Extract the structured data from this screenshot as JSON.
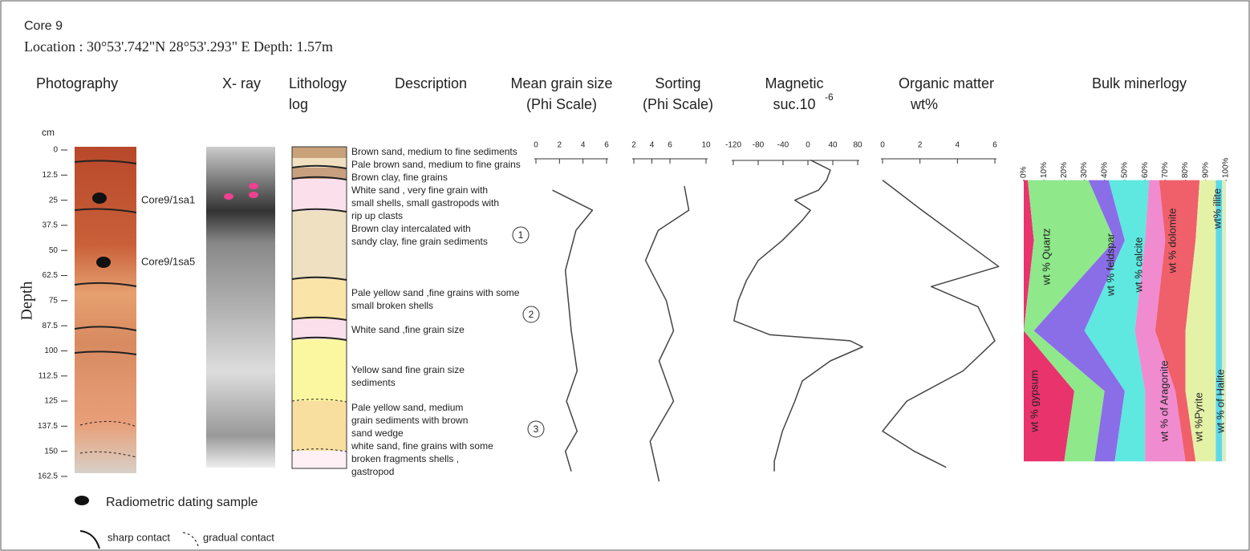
{
  "header": {
    "core": "Core 9",
    "location": "Location :  30°53'.742\"N  28°53'.293\" E Depth: 1.57m"
  },
  "columns": {
    "photography": "Photography",
    "xray": "X- ray",
    "lithology": [
      "Lithology",
      "log"
    ],
    "description": "Description"
  },
  "depth_axis": {
    "label": "Depth",
    "unit": "cm",
    "lim": [
      0,
      162.5
    ],
    "ticks": [
      0,
      12.5,
      25,
      37.5,
      50,
      62.5,
      75,
      87.5,
      100,
      112.5,
      125,
      137.5,
      150,
      162.5
    ]
  },
  "samples": [
    "Core9/1sa1",
    "Core9/1sa5"
  ],
  "descriptions": [
    [
      "Brown sand, medium to fine sediments"
    ],
    [
      "Pale brown sand, medium to fine grains"
    ],
    [
      "Brown clay, fine grains"
    ],
    [
      "White sand , very fine grain with",
      "small shells, small gastropods with",
      "rip up clasts"
    ],
    [
      "Brown clay intercalated with",
      "sandy clay, fine grain sediments"
    ],
    [
      "Pale yellow sand ,fine grains with some",
      "small broken shells"
    ],
    [
      "White sand ,fine grain size"
    ],
    [
      "Yellow sand fine grain size",
      "sediments"
    ],
    [
      "Pale yellow sand, medium",
      "grain sediments with brown",
      "sand wedge"
    ],
    [
      "white sand, fine grains with some",
      "broken fragments shells ,",
      "gastropod"
    ]
  ],
  "units": [
    "1",
    "2",
    "3"
  ],
  "logs": [
    {
      "title": [
        "Mean grain size",
        "(Phi Scale)"
      ],
      "lim": [
        0,
        6
      ],
      "ticks": [
        0,
        2,
        4,
        6
      ],
      "depths": [
        20,
        30,
        40,
        60,
        90,
        110,
        125,
        140,
        150,
        160
      ],
      "values": [
        1.4,
        4.8,
        3.4,
        2.5,
        3,
        3.5,
        2.6,
        3.5,
        2.5,
        3
      ]
    },
    {
      "title": [
        "Sorting",
        "(Phi Scale)"
      ],
      "lim": [
        2,
        10
      ],
      "ticks": [
        2,
        4,
        6,
        10
      ],
      "depths": [
        18,
        30,
        40,
        55,
        75,
        90,
        105,
        125,
        145,
        165
      ],
      "values": [
        7.6,
        8.1,
        4.7,
        3.3,
        5.6,
        6.4,
        4.8,
        6.4,
        3.8,
        4.8
      ]
    },
    {
      "title": [
        "Magnetic",
        "suc.10"
      ],
      "superscript": "-6",
      "lim": [
        -120,
        80
      ],
      "ticks": [
        -120,
        -80,
        -40,
        0,
        40,
        80
      ],
      "depths": [
        5,
        10,
        15,
        20,
        25,
        30,
        35,
        45,
        55,
        65,
        75,
        85,
        92,
        95,
        98,
        105,
        115,
        125,
        140,
        155,
        160
      ],
      "values": [
        4,
        36,
        30,
        17,
        -21,
        4,
        -9,
        -41,
        -80,
        -99,
        -112,
        -119,
        -61,
        68,
        88,
        36,
        -9,
        -21,
        -41,
        -54,
        -54
      ]
    },
    {
      "title": [
        "Organic matter",
        "wt%"
      ],
      "lim": [
        0,
        6
      ],
      "ticks": [
        0,
        2,
        4,
        6
      ],
      "depths": [
        15,
        30,
        45,
        58,
        68,
        78,
        95,
        110,
        125,
        140,
        150,
        158
      ],
      "values": [
        0,
        2.1,
        4.3,
        6.2,
        2.6,
        5.1,
        6,
        4.3,
        1.3,
        0,
        1.7,
        3.4
      ]
    }
  ],
  "mineralogy": {
    "title": "Bulk minerlogy",
    "lim": [
      0,
      100
    ],
    "ticks": [
      {
        "value": 0,
        "label": "0%"
      },
      {
        "value": 10,
        "label": "10%"
      },
      {
        "value": 20,
        "label": "20%"
      },
      {
        "value": 30,
        "label": "30%"
      },
      {
        "value": 40,
        "label": "40%"
      },
      {
        "value": 50,
        "label": "50%"
      },
      {
        "value": 60,
        "label": "60%"
      },
      {
        "value": 70,
        "label": "70%"
      },
      {
        "value": 80,
        "label": "80%"
      },
      {
        "value": 90,
        "label": "90%"
      },
      {
        "value": 100,
        "label": "100%"
      }
    ],
    "depths": [
      15,
      45,
      90,
      120,
      155
    ],
    "series": [
      {
        "name": "wt % gypsum",
        "color": "#e8336d",
        "values": [
          2,
          5,
          0,
          25,
          20
        ]
      },
      {
        "name": "wt % Quartz",
        "color": "#8fe88a",
        "values": [
          30,
          40,
          5,
          15,
          15
        ]
      },
      {
        "name": "wt % feldspar",
        "color": "#8a6ee8",
        "values": [
          10,
          5,
          25,
          10,
          10
        ]
      },
      {
        "name": "wt % calcite",
        "color": "#5ee8e0",
        "values": [
          20,
          10,
          25,
          10,
          15
        ]
      },
      {
        "name": "wt % of Aragonite",
        "color": "#f08bd0",
        "values": [
          5,
          10,
          10,
          15,
          20
        ]
      },
      {
        "name": "wt % dolomite",
        "color": "#f0606a",
        "values": [
          20,
          15,
          15,
          5,
          5
        ]
      },
      {
        "name": "wt %Pyrite",
        "color": "#e4f2a8",
        "values": [
          8,
          10,
          15,
          15,
          10
        ]
      },
      {
        "name": "wt % of Halite",
        "color": "#5ed8e8",
        "values": [
          3,
          3,
          3,
          3,
          3
        ]
      },
      {
        "name": "wt% illite",
        "color": "#d8f0c0",
        "values": [
          2,
          2,
          2,
          2,
          2
        ]
      }
    ]
  },
  "legend": {
    "dating": "Radiometric dating sample",
    "sharp": "sharp contact",
    "gradual": "gradual contact"
  }
}
